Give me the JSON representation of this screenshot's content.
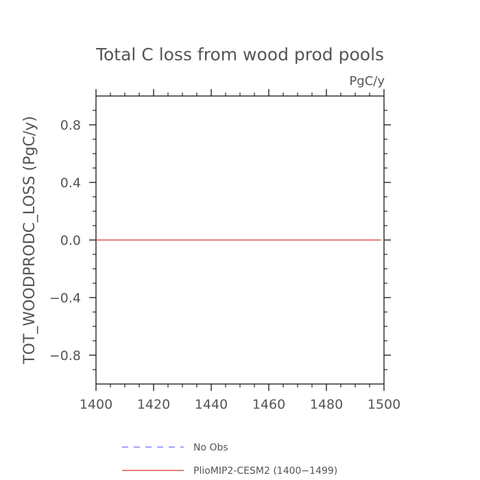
{
  "chart_data": {
    "type": "line",
    "title": "Total C loss from wood prod pools",
    "units": "PgC/y",
    "ylabel": "TOT_WOODPRODC_LOSS  (PgC/y)",
    "xlabel": "",
    "xlim": [
      1400,
      1500
    ],
    "ylim": [
      -1.0,
      1.0
    ],
    "x_ticks": [
      1400,
      1420,
      1440,
      1460,
      1480,
      1500
    ],
    "x_tick_labels": [
      "1400",
      "1420",
      "1440",
      "1460",
      "1480",
      "1500"
    ],
    "y_ticks": [
      -0.8,
      -0.4,
      0.0,
      0.4,
      0.8
    ],
    "y_tick_labels": [
      "−0.8",
      "−0.4",
      "0.0",
      "0.4",
      "0.8"
    ],
    "grid": false,
    "legend_position": "bottom",
    "series": [
      {
        "name": "No Obs",
        "color": "#6a6aff",
        "dash": "dashed",
        "x": [],
        "y": []
      },
      {
        "name": "PlioMIP2-CESM2 (1400−1499)",
        "color": "#e03030",
        "dash": "solid",
        "x": [
          1400,
          1499
        ],
        "y": [
          0.0,
          0.0
        ]
      }
    ]
  }
}
